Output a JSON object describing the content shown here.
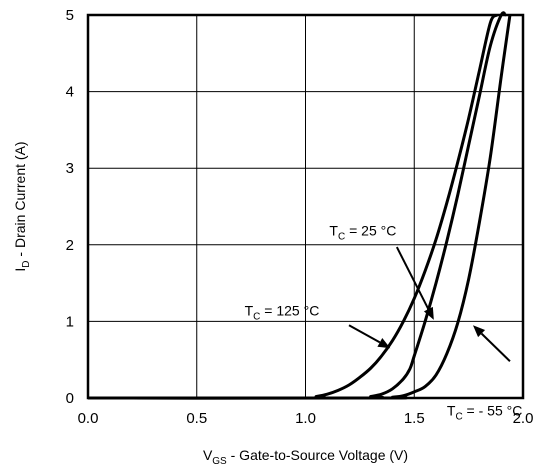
{
  "chart_data": {
    "type": "line",
    "xlabel": {
      "main": "V",
      "sub": "GS",
      "rest": " - Gate-to-Source Voltage (V)"
    },
    "ylabel": {
      "main": "I",
      "sub": "D",
      "rest": " - Drain Current (A)"
    },
    "xlim": [
      0.0,
      2.0
    ],
    "ylim": [
      0,
      5
    ],
    "x_ticks": [
      "0.0",
      "0.5",
      "1.0",
      "1.5",
      "2.0"
    ],
    "y_ticks": [
      "0",
      "1",
      "2",
      "3",
      "4",
      "5"
    ],
    "grid": true,
    "series": [
      {
        "name": "TC = 125 °C",
        "x": [
          0.0,
          1.0,
          1.05,
          1.1,
          1.15,
          1.2,
          1.25,
          1.3,
          1.35,
          1.4,
          1.45,
          1.5,
          1.55,
          1.6,
          1.65,
          1.7,
          1.75,
          1.8,
          1.85,
          1.88
        ],
        "y": [
          0,
          0,
          0.02,
          0.05,
          0.1,
          0.17,
          0.27,
          0.39,
          0.55,
          0.75,
          1.0,
          1.3,
          1.66,
          2.07,
          2.55,
          3.08,
          3.65,
          4.28,
          4.9,
          5.0
        ]
      },
      {
        "name": "TC = 25 °C",
        "x": [
          0.0,
          1.25,
          1.3,
          1.35,
          1.4,
          1.45,
          1.48,
          1.5,
          1.55,
          1.6,
          1.65,
          1.7,
          1.75,
          1.8,
          1.85,
          1.9,
          1.92
        ],
        "y": [
          0,
          0,
          0.02,
          0.05,
          0.12,
          0.25,
          0.38,
          0.55,
          1.0,
          1.5,
          2.05,
          2.65,
          3.3,
          3.95,
          4.6,
          5.0,
          5.0
        ]
      },
      {
        "name": "TC = - 55 °C",
        "x": [
          0.0,
          1.35,
          1.4,
          1.45,
          1.5,
          1.55,
          1.6,
          1.65,
          1.7,
          1.75,
          1.8,
          1.85,
          1.9,
          1.94
        ],
        "y": [
          0,
          0,
          0.01,
          0.03,
          0.08,
          0.15,
          0.3,
          0.58,
          0.98,
          1.55,
          2.3,
          3.15,
          4.2,
          5.0
        ]
      }
    ],
    "annotations": [
      {
        "main": "T",
        "sub": "C",
        "rest": " = 125 °C",
        "series": 0,
        "text_xy": [
          0.72,
          1.08
        ],
        "arrow_from": [
          1.2,
          0.95
        ],
        "arrow_to": [
          1.39,
          0.65
        ]
      },
      {
        "main": "T",
        "sub": "C",
        "rest": " = 25 °C",
        "series": 1,
        "text_xy": [
          1.11,
          2.12
        ],
        "arrow_from": [
          1.42,
          1.97
        ],
        "arrow_to": [
          1.59,
          1.02
        ]
      },
      {
        "main": "T",
        "sub": "C",
        "rest": " = - 55 °C",
        "series": 2,
        "text_xy": [
          1.65,
          -0.23
        ],
        "arrow_from": [
          1.94,
          0.48
        ],
        "arrow_to": [
          1.77,
          0.95
        ]
      }
    ]
  }
}
